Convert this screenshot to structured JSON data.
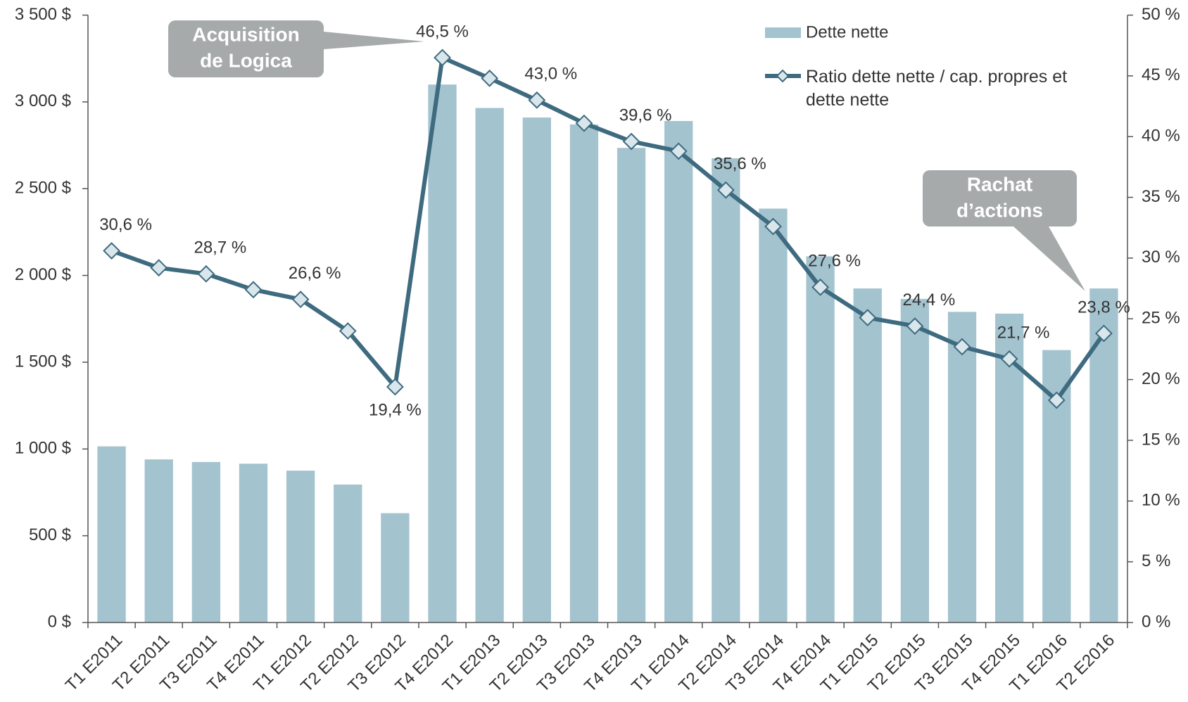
{
  "chart_data": {
    "type": "bar",
    "categories": [
      "T1 E2011",
      "T2 E2011",
      "T3 E2011",
      "T4 E2011",
      "T1 E2012",
      "T2 E2012",
      "T3 E2012",
      "T4 E2012",
      "T1 E2013",
      "T2 E2013",
      "T3 E2013",
      "T4 E2013",
      "T1 E2014",
      "T2 E2014",
      "T3 E2014",
      "T4 E2014",
      "T1 E2015",
      "T2 E2015",
      "T3 E2015",
      "T4 E2015",
      "T1 E2016",
      "T2 E2016"
    ],
    "series": [
      {
        "name": "Dette nette",
        "type": "bar",
        "color": "#a3c3cf",
        "values": [
          1015,
          940,
          925,
          915,
          875,
          795,
          630,
          3100,
          2965,
          2910,
          2870,
          2735,
          2890,
          2675,
          2385,
          2110,
          1925,
          1865,
          1790,
          1780,
          1570,
          1925
        ]
      },
      {
        "name": "Ratio dette nette / cap. propres et dette nette",
        "type": "line",
        "axis": "y2",
        "color": "#3e6b7f",
        "marker_fill": "#d9e6ec",
        "values": [
          30.6,
          29.2,
          28.7,
          27.4,
          26.6,
          24.0,
          19.4,
          46.5,
          44.8,
          43.0,
          41.1,
          39.6,
          38.8,
          35.6,
          32.6,
          27.6,
          25.1,
          24.4,
          22.7,
          21.7,
          18.3,
          23.8
        ],
        "value_labels": [
          "30,6 %",
          null,
          "28,7 %",
          null,
          "26,6 %",
          null,
          "19,4 %",
          "46,5 %",
          null,
          "43,0 %",
          null,
          "39,6 %",
          null,
          "35,6 %",
          null,
          "27,6 %",
          null,
          "24,4 %",
          null,
          "21,7 %",
          null,
          "23,8 %"
        ]
      }
    ],
    "ylim": [
      0,
      3500
    ],
    "yticks": [
      {
        "value": 0,
        "label": "0 $"
      },
      {
        "value": 500,
        "label": "500 $"
      },
      {
        "value": 1000,
        "label": "1 000 $"
      },
      {
        "value": 1500,
        "label": "1 500 $"
      },
      {
        "value": 2000,
        "label": "2 000 $"
      },
      {
        "value": 2500,
        "label": "2 500 $"
      },
      {
        "value": 3000,
        "label": "3 000 $"
      },
      {
        "value": 3500,
        "label": "3 500 $"
      }
    ],
    "y2lim": [
      0,
      50
    ],
    "y2ticks": [
      {
        "value": 0,
        "label": "0 %"
      },
      {
        "value": 5,
        "label": "5 %"
      },
      {
        "value": 10,
        "label": "10 %"
      },
      {
        "value": 15,
        "label": "15 %"
      },
      {
        "value": 20,
        "label": "20 %"
      },
      {
        "value": 25,
        "label": "25 %"
      },
      {
        "value": 30,
        "label": "30 %"
      },
      {
        "value": 35,
        "label": "35 %"
      },
      {
        "value": 40,
        "label": "40 %"
      },
      {
        "value": 45,
        "label": "45 %"
      },
      {
        "value": 50,
        "label": "50 %"
      }
    ],
    "annotations": [
      {
        "lines": [
          "Acquisition",
          "de Logica"
        ]
      },
      {
        "lines": [
          "Rachat",
          "d’actions"
        ]
      }
    ]
  }
}
